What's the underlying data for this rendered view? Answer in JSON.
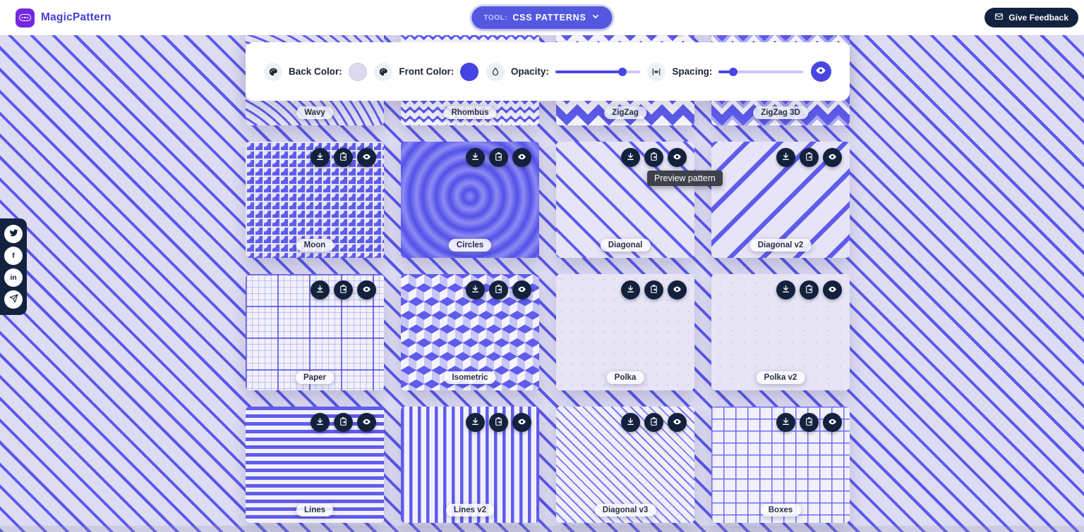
{
  "header": {
    "logo_text": "MagicPattern",
    "tool_label": "TOOL:",
    "tool_value": "CSS PATTERNS",
    "feedback_label": "Give Feedback"
  },
  "toolbar": {
    "back_color": {
      "label": "Back Color:",
      "value": "#dcd9f0"
    },
    "front_color": {
      "label": "Front Color:",
      "value": "#4543e6"
    },
    "opacity": {
      "label": "Opacity:",
      "percent": 79
    },
    "spacing": {
      "label": "Spacing:",
      "percent": 17
    }
  },
  "tooltip": {
    "text": "Preview pattern"
  },
  "social": {
    "items": [
      {
        "name": "twitter"
      },
      {
        "name": "facebook"
      },
      {
        "name": "linkedin"
      },
      {
        "name": "telegram"
      }
    ]
  },
  "cards": {
    "actions": [
      {
        "name": "download",
        "label": "Download pattern"
      },
      {
        "name": "copy-css",
        "label": "Copy CSS"
      },
      {
        "name": "preview",
        "label": "Preview pattern"
      }
    ],
    "items": [
      {
        "label": "Wavy",
        "slug": "wavy"
      },
      {
        "label": "Rhombus",
        "slug": "rhombus"
      },
      {
        "label": "ZigZag",
        "slug": "zigzag"
      },
      {
        "label": "ZigZag 3D",
        "slug": "zigzag-3d"
      },
      {
        "label": "Moon",
        "slug": "moon"
      },
      {
        "label": "Circles",
        "slug": "circles"
      },
      {
        "label": "Diagonal",
        "slug": "diagonal"
      },
      {
        "label": "Diagonal v2",
        "slug": "diagonal-v2"
      },
      {
        "label": "Paper",
        "slug": "paper"
      },
      {
        "label": "Isometric",
        "slug": "isometric"
      },
      {
        "label": "Polka",
        "slug": "polka"
      },
      {
        "label": "Polka v2",
        "slug": "polka-v2"
      },
      {
        "label": "Lines",
        "slug": "lines"
      },
      {
        "label": "Lines v2",
        "slug": "lines-v2"
      },
      {
        "label": "Diagonal v3",
        "slug": "diagonal-v3"
      },
      {
        "label": "Boxes",
        "slug": "boxes"
      }
    ]
  },
  "icons": {
    "logo": "magicpattern-logo-icon",
    "chevron": "chevron-down-icon",
    "mail": "mail-icon",
    "palette": "palette-icon",
    "droplet": "droplet-icon",
    "spacing": "horizontal-arrows-icon",
    "eye": "eye-icon",
    "download": "download-icon",
    "clipboard": "clipboard-copy-icon"
  },
  "colors": {
    "accent_blue": "#5f5cec",
    "navy": "#14213d",
    "background_lavender": "#dedcf3",
    "tool_pill": "#5457e0",
    "logo_purple": "#7527e0",
    "slider_fill": "#4946e3",
    "slider_track": "#c9c8f7"
  }
}
